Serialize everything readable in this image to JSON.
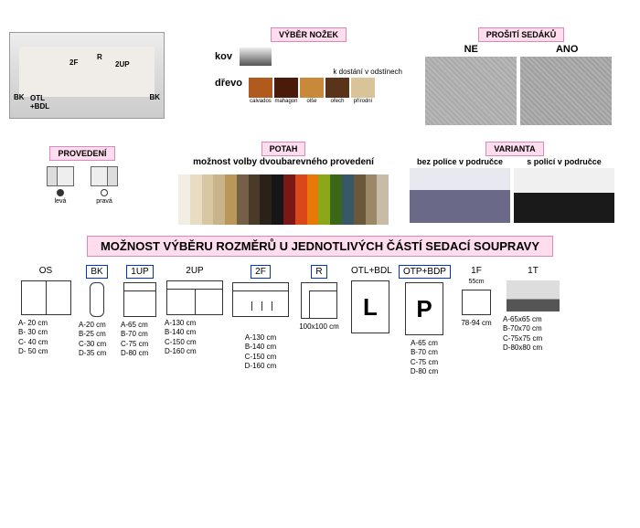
{
  "sofa_labels": [
    "BK",
    "OTL\n+BDL",
    "2F",
    "R",
    "2UP",
    "BK"
  ],
  "nozek": {
    "title": "VÝBĚR NOŽEK",
    "kov": "kov",
    "drevo": "dřevo",
    "avail": "k dostání v odstínech",
    "woods": [
      {
        "name": "calvados",
        "color": "#b05a1e"
      },
      {
        "name": "mahagon",
        "color": "#4a1a0a"
      },
      {
        "name": "olše",
        "color": "#c88a3a"
      },
      {
        "name": "ořech",
        "color": "#5a3418"
      },
      {
        "name": "přírodní",
        "color": "#d9c49a"
      }
    ]
  },
  "prositi": {
    "title": "PROŠITÍ SEDÁKŮ",
    "ne": "NE",
    "ano": "ANO"
  },
  "prov": {
    "title": "PROVEDENÍ",
    "leva": "levá",
    "prava": "pravá"
  },
  "potah": {
    "title": "POTAH",
    "sub": "možnost volby dvoubarevného provedení",
    "colors": [
      "#f3eee4",
      "#e8dcc5",
      "#d9c7a3",
      "#c8b488",
      "#b89758",
      "#746048",
      "#4a3a28",
      "#2a2218",
      "#161616",
      "#7a1818",
      "#d84818",
      "#e87808",
      "#8aa818",
      "#3a6818",
      "#385868",
      "#6a5838",
      "#9a8868",
      "#c8bca8"
    ]
  },
  "varianta": {
    "title": "VARIANTA",
    "opt1": "bez police v područce",
    "opt2": "s policí v područce"
  },
  "bighead": "MOŽNOST VÝBĚRU ROZMĚRŮ U JEDNOTLIVÝCH ČÁSTÍ SEDACÍ SOUPRAVY",
  "modules": {
    "os": {
      "label": "OS",
      "dims": [
        "A- 20 cm",
        "B- 30 cm",
        "C- 40 cm",
        "D- 50 cm"
      ]
    },
    "bk": {
      "label": "BK",
      "dims": [
        "A-20 cm",
        "B-25 cm",
        "C-30 cm",
        "D-35 cm"
      ]
    },
    "up1": {
      "label": "1UP",
      "dims": [
        "A-65 cm",
        "B-70 cm",
        "C-75 cm",
        "D-80 cm"
      ]
    },
    "up2": {
      "label": "2UP",
      "dims": [
        "A-130 cm",
        "B-140 cm",
        "C-150 cm",
        "D-160 cm"
      ]
    },
    "f2": {
      "label": "2F",
      "dims": [
        "A-130 cm",
        "B-140 cm",
        "C-150 cm",
        "D-160 cm"
      ]
    },
    "r": {
      "label": "R",
      "dims": [
        "100x100 cm"
      ]
    },
    "otl": {
      "label": "OTL+BDL",
      "letter": "L"
    },
    "otp": {
      "label": "OTP+BDP",
      "letter": "P",
      "dims": [
        "A-65 cm",
        "B-70 cm",
        "C-75 cm",
        "D-80 cm"
      ]
    },
    "f1": {
      "label": "1F",
      "width": "55cm",
      "dims": [
        "78-94 cm"
      ]
    },
    "t1": {
      "label": "1T",
      "dims": [
        "A-65x65 cm",
        "B-70x70 cm",
        "C-75x75 cm",
        "D-80x80 cm"
      ]
    }
  }
}
